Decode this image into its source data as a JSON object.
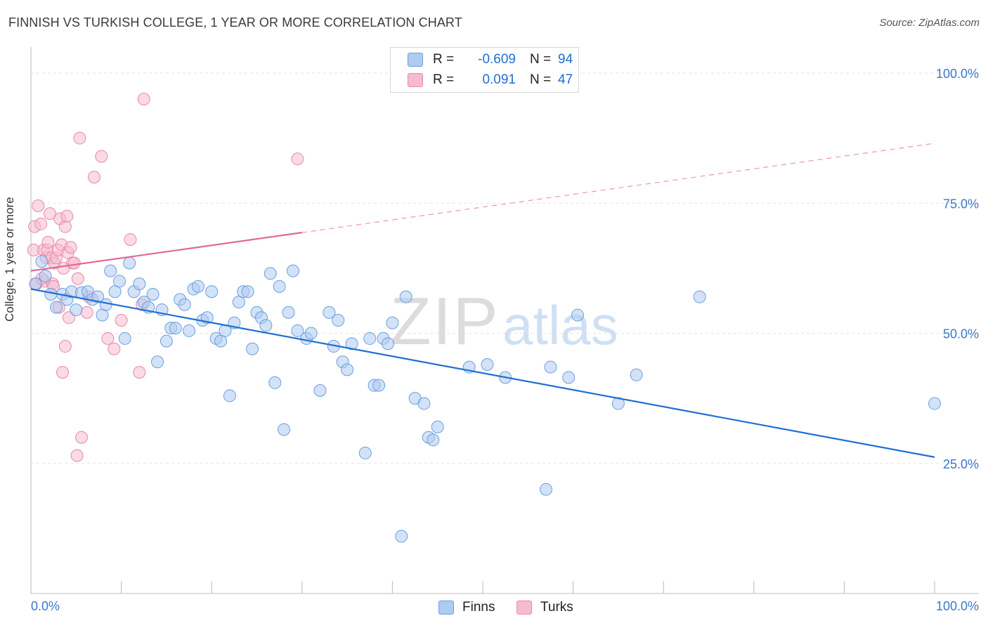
{
  "header": {
    "title": "FINNISH VS TURKISH COLLEGE, 1 YEAR OR MORE CORRELATION CHART",
    "source": "Source: ZipAtlas.com"
  },
  "legend": {
    "finns": {
      "r_label": "R =",
      "r_value": "-0.609",
      "n_label": "N =",
      "n_value": "94"
    },
    "turks": {
      "r_label": "R =",
      "r_value": "0.091",
      "n_label": "N =",
      "n_value": "47"
    }
  },
  "series_legend": {
    "finns": "Finns",
    "turks": "Turks"
  },
  "colors": {
    "finns_fill": "#aecbf0",
    "finns_stroke": "#6a9fdf",
    "finns_line": "#1f6fd1",
    "turks_fill": "#f6bccd",
    "turks_stroke": "#e889a6",
    "turks_line": "#e06a93",
    "axis_text": "#3a78c9",
    "grid": "#e3e3e3"
  },
  "watermark": {
    "zip": "ZIP",
    "atlas": "atlas"
  },
  "chart_data": {
    "type": "scatter",
    "title": "FINNISH VS TURKISH COLLEGE, 1 YEAR OR MORE CORRELATION CHART",
    "xlabel": "",
    "ylabel": "College, 1 year or more",
    "xlim": [
      0,
      100
    ],
    "ylim": [
      0,
      105
    ],
    "x_tick_labels": [
      "0.0%",
      "100.0%"
    ],
    "y_ticks": [
      25,
      50,
      75,
      100
    ],
    "y_tick_labels": [
      "25.0%",
      "50.0%",
      "75.0%",
      "100.0%"
    ],
    "grid": true,
    "series": [
      {
        "name": "Finns",
        "trend": {
          "x": [
            0,
            100
          ],
          "y": [
            58.5,
            26.2
          ],
          "dashed_from": null
        },
        "points": [
          [
            0.5,
            59.5
          ],
          [
            1.2,
            63.8
          ],
          [
            1.6,
            61
          ],
          [
            2.2,
            57.5
          ],
          [
            2.8,
            55
          ],
          [
            3.5,
            57.5
          ],
          [
            4,
            56.5
          ],
          [
            4.5,
            58
          ],
          [
            5,
            54.5
          ],
          [
            5.6,
            57.8
          ],
          [
            6.3,
            58
          ],
          [
            6.8,
            56.5
          ],
          [
            7.4,
            57
          ],
          [
            7.9,
            53.5
          ],
          [
            8.3,
            55.5
          ],
          [
            8.8,
            62
          ],
          [
            9.3,
            58
          ],
          [
            9.8,
            60
          ],
          [
            10.4,
            49
          ],
          [
            10.9,
            63.5
          ],
          [
            11.4,
            58
          ],
          [
            12,
            59.5
          ],
          [
            12.5,
            56
          ],
          [
            13,
            55
          ],
          [
            13.5,
            57.5
          ],
          [
            14,
            44.5
          ],
          [
            14.5,
            54.5
          ],
          [
            15,
            48.5
          ],
          [
            15.5,
            51
          ],
          [
            16,
            51
          ],
          [
            16.5,
            56.5
          ],
          [
            17,
            55.5
          ],
          [
            17.5,
            50.5
          ],
          [
            18,
            58.5
          ],
          [
            18.5,
            59
          ],
          [
            19,
            52.5
          ],
          [
            19.5,
            53
          ],
          [
            20,
            58
          ],
          [
            20.5,
            49
          ],
          [
            21,
            48.5
          ],
          [
            21.5,
            50.5
          ],
          [
            22,
            38
          ],
          [
            22.5,
            52
          ],
          [
            23,
            56
          ],
          [
            23.5,
            58
          ],
          [
            24,
            58
          ],
          [
            24.5,
            47
          ],
          [
            25,
            54
          ],
          [
            25.5,
            53
          ],
          [
            26,
            51.5
          ],
          [
            26.5,
            61.5
          ],
          [
            27,
            40.5
          ],
          [
            27.5,
            59
          ],
          [
            28,
            31.5
          ],
          [
            28.5,
            54
          ],
          [
            29,
            62
          ],
          [
            29.5,
            50.5
          ],
          [
            30.5,
            49
          ],
          [
            31,
            50
          ],
          [
            32,
            39
          ],
          [
            33,
            54
          ],
          [
            33.5,
            47.5
          ],
          [
            34,
            52.5
          ],
          [
            34.5,
            44.5
          ],
          [
            35,
            43
          ],
          [
            35.5,
            48
          ],
          [
            37,
            27
          ],
          [
            37.5,
            49
          ],
          [
            38,
            40
          ],
          [
            38.5,
            40
          ],
          [
            39,
            49
          ],
          [
            39.5,
            48
          ],
          [
            40,
            52
          ],
          [
            41,
            11
          ],
          [
            41.5,
            57
          ],
          [
            42.5,
            37.5
          ],
          [
            43.5,
            36.5
          ],
          [
            44,
            30
          ],
          [
            44.5,
            29.5
          ],
          [
            45,
            32
          ],
          [
            48.5,
            43.5
          ],
          [
            50.5,
            44
          ],
          [
            52.5,
            41.5
          ],
          [
            57,
            20
          ],
          [
            57.5,
            43.5
          ],
          [
            59.5,
            41.5
          ],
          [
            60.5,
            53.5
          ],
          [
            65,
            36.5
          ],
          [
            67,
            42
          ],
          [
            74,
            57
          ],
          [
            100,
            36.5
          ]
        ]
      },
      {
        "name": "Turks",
        "trend": {
          "x": [
            0,
            100
          ],
          "y": [
            62,
            86.5
          ],
          "dashed_from": 30
        },
        "points": [
          [
            0.3,
            66
          ],
          [
            0.4,
            70.5
          ],
          [
            0.6,
            59.5
          ],
          [
            0.8,
            74.5
          ],
          [
            1.1,
            71
          ],
          [
            1.4,
            66
          ],
          [
            1.5,
            60
          ],
          [
            1.7,
            64.5
          ],
          [
            1.8,
            66
          ],
          [
            1.9,
            67.5
          ],
          [
            2.1,
            73
          ],
          [
            2.3,
            64.5
          ],
          [
            2.4,
            59.5
          ],
          [
            2.6,
            63.5
          ],
          [
            2.8,
            64.5
          ],
          [
            3,
            66
          ],
          [
            3.1,
            55
          ],
          [
            3.2,
            72
          ],
          [
            3.4,
            67
          ],
          [
            3.6,
            62.5
          ],
          [
            3.8,
            70.5
          ],
          [
            4,
            72.5
          ],
          [
            4.1,
            65.5
          ],
          [
            4.2,
            53
          ],
          [
            4.4,
            66.5
          ],
          [
            4.6,
            63.5
          ],
          [
            4.8,
            63.5
          ],
          [
            5.2,
            60.5
          ],
          [
            5.4,
            87.5
          ],
          [
            5.6,
            30
          ],
          [
            5.1,
            26.5
          ],
          [
            6.2,
            54
          ],
          [
            6.4,
            57
          ],
          [
            7,
            80
          ],
          [
            7.8,
            84
          ],
          [
            8.5,
            49
          ],
          [
            9.2,
            47
          ],
          [
            10,
            52.5
          ],
          [
            11,
            68
          ],
          [
            12,
            42.5
          ],
          [
            12.5,
            95
          ],
          [
            3.5,
            42.5
          ],
          [
            3.8,
            47.5
          ],
          [
            2.5,
            59
          ],
          [
            1.2,
            60.5
          ],
          [
            29.5,
            83.5
          ],
          [
            12.3,
            55.5
          ]
        ]
      }
    ]
  }
}
